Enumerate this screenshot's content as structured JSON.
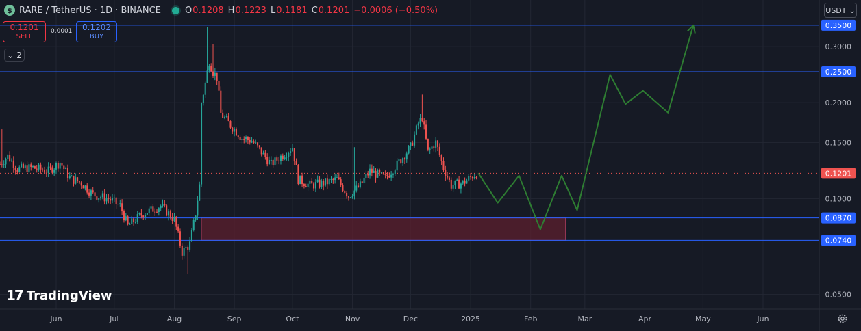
{
  "header": {
    "symbol_icon": "dollar-coin-icon",
    "symbol_icon_glyph": "$",
    "title": "RARE / TetherUS · 1D · BINANCE",
    "ohlc": [
      {
        "label": "O",
        "value": "0.1208"
      },
      {
        "label": "H",
        "value": "0.1223"
      },
      {
        "label": "L",
        "value": "0.1181"
      },
      {
        "label": "C",
        "value": "0.1201"
      }
    ],
    "change": "−0.0006 (−0.50%)"
  },
  "trade": {
    "sell_price": "0.1201",
    "sell_label": "SELL",
    "spread": "0.0001",
    "buy_price": "0.1202",
    "buy_label": "BUY"
  },
  "indicators_toggle": {
    "icon": "chevron-down-icon",
    "glyph": "⌄",
    "count": "2"
  },
  "currency_selector": {
    "value": "USDT",
    "icon": "chevron-down-icon",
    "glyph": "⌄"
  },
  "logo": {
    "mark": "17",
    "text": "TradingView"
  },
  "colors": {
    "background": "#161a25",
    "up": "#26a69a",
    "down": "#ef5350",
    "level_line": "#2962ff",
    "projection": "#2e7d32",
    "zone_fill": "#5c1f2e",
    "zone_border": "#9c3a58"
  },
  "chart_data": {
    "type": "candlestick",
    "interval": "1D",
    "y_axis": {
      "scale": "log",
      "ylim": [
        0.045,
        0.42
      ],
      "ticks": [
        "0.3000",
        "0.2000",
        "0.1500",
        "0.1000",
        "0.0500"
      ]
    },
    "x_axis": {
      "start": "2024-05-03",
      "end": "2025-06-30",
      "tick_labels": [
        {
          "label": "Jun",
          "date": "2024-06-01"
        },
        {
          "label": "Jul",
          "date": "2024-07-01"
        },
        {
          "label": "Aug",
          "date": "2024-08-01"
        },
        {
          "label": "Sep",
          "date": "2024-09-01"
        },
        {
          "label": "Oct",
          "date": "2024-10-01"
        },
        {
          "label": "Nov",
          "date": "2024-11-01"
        },
        {
          "label": "Dec",
          "date": "2024-12-01"
        },
        {
          "label": "2025",
          "date": "2025-01-01"
        },
        {
          "label": "Feb",
          "date": "2025-02-01"
        },
        {
          "label": "Mar",
          "date": "2025-03-01"
        },
        {
          "label": "Apr",
          "date": "2025-04-01"
        },
        {
          "label": "May",
          "date": "2025-05-01"
        },
        {
          "label": "Jun",
          "date": "2025-06-01"
        }
      ]
    },
    "price_path": [
      [
        "2024-05-03",
        0.128
      ],
      [
        "2024-05-07",
        0.136
      ],
      [
        "2024-05-12",
        0.124
      ],
      [
        "2024-05-20",
        0.125
      ],
      [
        "2024-05-28",
        0.122
      ],
      [
        "2024-06-03",
        0.13
      ],
      [
        "2024-06-08",
        0.116
      ],
      [
        "2024-06-14",
        0.112
      ],
      [
        "2024-06-20",
        0.103
      ],
      [
        "2024-06-28",
        0.1
      ],
      [
        "2024-07-04",
        0.095
      ],
      [
        "2024-07-08",
        0.082
      ],
      [
        "2024-07-16",
        0.09
      ],
      [
        "2024-07-25",
        0.095
      ],
      [
        "2024-08-01",
        0.086
      ],
      [
        "2024-08-05",
        0.068
      ],
      [
        "2024-08-09",
        0.072
      ],
      [
        "2024-08-12",
        0.09
      ],
      [
        "2024-08-14",
        0.11
      ],
      [
        "2024-08-15",
        0.2
      ],
      [
        "2024-08-17",
        0.23
      ],
      [
        "2024-08-19",
        0.27
      ],
      [
        "2024-08-21",
        0.25
      ],
      [
        "2024-08-23",
        0.24
      ],
      [
        "2024-08-25",
        0.185
      ],
      [
        "2024-08-30",
        0.17
      ],
      [
        "2024-09-05",
        0.155
      ],
      [
        "2024-09-10",
        0.152
      ],
      [
        "2024-09-15",
        0.14
      ],
      [
        "2024-09-20",
        0.128
      ],
      [
        "2024-09-26",
        0.137
      ],
      [
        "2024-10-01",
        0.145
      ],
      [
        "2024-10-04",
        0.115
      ],
      [
        "2024-10-10",
        0.11
      ],
      [
        "2024-10-18",
        0.112
      ],
      [
        "2024-10-24",
        0.115
      ],
      [
        "2024-10-30",
        0.102
      ],
      [
        "2024-11-05",
        0.11
      ],
      [
        "2024-11-10",
        0.122
      ],
      [
        "2024-11-18",
        0.116
      ],
      [
        "2024-11-24",
        0.128
      ],
      [
        "2024-12-01",
        0.145
      ],
      [
        "2024-12-05",
        0.172
      ],
      [
        "2024-12-07",
        0.18
      ],
      [
        "2024-12-10",
        0.14
      ],
      [
        "2024-12-14",
        0.15
      ],
      [
        "2024-12-18",
        0.125
      ],
      [
        "2024-12-22",
        0.11
      ],
      [
        "2024-12-28",
        0.112
      ],
      [
        "2025-01-04",
        0.12
      ]
    ],
    "candle_wicks": [
      {
        "date": "2024-05-04",
        "high": 0.165
      },
      {
        "date": "2024-08-18",
        "high": 0.346
      },
      {
        "date": "2024-08-21",
        "high": 0.305
      },
      {
        "date": "2024-12-07",
        "high": 0.212
      },
      {
        "date": "2024-11-02",
        "high": 0.145
      },
      {
        "date": "2024-08-08",
        "low": 0.058
      }
    ],
    "current_price": 0.1201,
    "horizontal_levels": [
      0.35,
      0.25,
      0.087,
      0.074
    ],
    "price_labels": [
      {
        "text": "0.3500",
        "value": 0.35,
        "kind": "level"
      },
      {
        "text": "0.2500",
        "value": 0.25,
        "kind": "level"
      },
      {
        "text": "0.1201",
        "value": 0.1201,
        "kind": "last"
      },
      {
        "text": "0.0870",
        "value": 0.087,
        "kind": "level"
      },
      {
        "text": "0.0740",
        "value": 0.074,
        "kind": "level"
      }
    ],
    "zone": {
      "start": "2024-08-15",
      "end": "2025-02-19",
      "top": 0.087,
      "bottom": 0.074
    },
    "projection": [
      [
        "2025-01-05",
        0.1201
      ],
      [
        "2025-01-15",
        0.097
      ],
      [
        "2025-01-26",
        0.118
      ],
      [
        "2025-02-06",
        0.08
      ],
      [
        "2025-02-17",
        0.118
      ],
      [
        "2025-02-25",
        0.092
      ],
      [
        "2025-03-14",
        0.245
      ],
      [
        "2025-03-22",
        0.198
      ],
      [
        "2025-03-31",
        0.218
      ],
      [
        "2025-04-13",
        0.186
      ],
      [
        "2025-04-26",
        0.35
      ]
    ]
  }
}
